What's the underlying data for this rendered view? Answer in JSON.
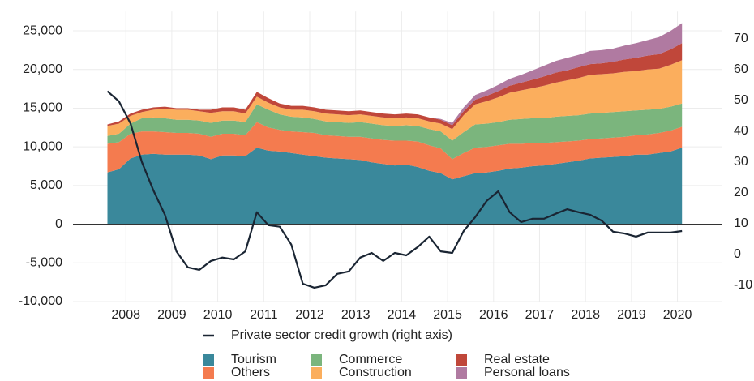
{
  "chart_data": {
    "type": "stacked_area",
    "x": [
      2007.6,
      2007.85,
      2008.1,
      2008.35,
      2008.6,
      2008.85,
      2009.1,
      2009.35,
      2009.6,
      2009.85,
      2010.1,
      2010.35,
      2010.6,
      2010.85,
      2011.1,
      2011.35,
      2011.6,
      2011.85,
      2012.1,
      2012.35,
      2012.6,
      2012.85,
      2013.1,
      2013.35,
      2013.6,
      2013.85,
      2014.1,
      2014.35,
      2014.6,
      2014.85,
      2015.1,
      2015.35,
      2015.6,
      2015.85,
      2016.1,
      2016.35,
      2016.6,
      2016.85,
      2017.1,
      2017.35,
      2017.6,
      2017.85,
      2018.1,
      2018.35,
      2018.6,
      2018.85,
      2019.1,
      2019.35,
      2019.6,
      2019.85,
      2020.1
    ],
    "series": [
      {
        "name": "Tourism",
        "color": "#3a889b",
        "values": [
          6700,
          7100,
          8500,
          9000,
          9100,
          9000,
          9000,
          9000,
          8900,
          8400,
          8900,
          8900,
          8800,
          9900,
          9500,
          9400,
          9200,
          9000,
          8800,
          8600,
          8500,
          8400,
          8300,
          8000,
          7800,
          7600,
          7700,
          7400,
          6900,
          6600,
          5800,
          6200,
          6600,
          6700,
          6900,
          7200,
          7300,
          7500,
          7600,
          7800,
          8000,
          8200,
          8500,
          8600,
          8700,
          8800,
          9000,
          9000,
          9200,
          9400,
          9900
        ]
      },
      {
        "name": "Others",
        "color": "#f47b4f",
        "values": [
          3700,
          3500,
          3200,
          3000,
          2900,
          2900,
          2800,
          2800,
          2800,
          2900,
          2800,
          2800,
          2700,
          3300,
          3000,
          2800,
          2800,
          2900,
          3000,
          2900,
          2900,
          2900,
          3000,
          3100,
          3100,
          3200,
          3100,
          3300,
          3300,
          3200,
          2600,
          3000,
          3300,
          3300,
          3300,
          3200,
          3100,
          3000,
          2900,
          2800,
          2700,
          2600,
          2500,
          2500,
          2500,
          2500,
          2500,
          2600,
          2600,
          2700,
          2700
        ]
      },
      {
        "name": "Commerce",
        "color": "#7bb57d",
        "values": [
          1000,
          1100,
          1300,
          1700,
          1800,
          1800,
          1700,
          1700,
          1700,
          1800,
          1700,
          1700,
          1700,
          2300,
          2300,
          2000,
          1900,
          1900,
          1800,
          1800,
          1800,
          1800,
          1900,
          1900,
          1900,
          1900,
          2000,
          2000,
          2100,
          2200,
          2400,
          2700,
          3000,
          3000,
          3000,
          3100,
          3200,
          3200,
          3200,
          3300,
          3300,
          3300,
          3300,
          3300,
          3300,
          3300,
          3200,
          3200,
          3100,
          3100,
          3000
        ]
      },
      {
        "name": "Construction",
        "color": "#fbae5d",
        "values": [
          1300,
          1300,
          1000,
          800,
          1000,
          1200,
          1300,
          1300,
          1200,
          1300,
          1200,
          1200,
          1100,
          1000,
          900,
          900,
          900,
          1000,
          1000,
          1000,
          1000,
          1000,
          1000,
          1000,
          1000,
          1000,
          1000,
          1000,
          1000,
          1000,
          1500,
          2200,
          2600,
          2900,
          3200,
          3500,
          3700,
          3900,
          4200,
          4400,
          4600,
          4800,
          5000,
          5000,
          5000,
          5100,
          5100,
          5200,
          5200,
          5400,
          5600
        ]
      },
      {
        "name": "Real estate",
        "color": "#c0473a",
        "values": [
          200,
          300,
          300,
          300,
          300,
          300,
          200,
          200,
          200,
          400,
          500,
          500,
          500,
          600,
          600,
          500,
          500,
          500,
          500,
          500,
          500,
          500,
          500,
          500,
          500,
          500,
          500,
          500,
          500,
          500,
          500,
          500,
          600,
          700,
          800,
          900,
          1000,
          1100,
          1200,
          1300,
          1300,
          1400,
          1400,
          1400,
          1500,
          1600,
          1700,
          1800,
          1900,
          2000,
          2200
        ]
      },
      {
        "name": "Personal loans",
        "color": "#b07aa1",
        "values": [
          0,
          0,
          0,
          0,
          0,
          0,
          0,
          0,
          0,
          0,
          0,
          0,
          0,
          0,
          0,
          0,
          0,
          0,
          0,
          0,
          0,
          0,
          0,
          0,
          0,
          0,
          0,
          0,
          0,
          100,
          300,
          500,
          600,
          700,
          800,
          900,
          1000,
          1200,
          1400,
          1500,
          1600,
          1600,
          1700,
          1700,
          1700,
          1800,
          1900,
          2000,
          2200,
          2400,
          2600
        ]
      },
      {
        "name": "Private sector credit growth (right axis)",
        "color": "#1a2533",
        "axis": "y2",
        "values": [
          53,
          49.7,
          42.6,
          30,
          20.8,
          12.9,
          1,
          -4.2,
          -5,
          -2.1,
          -1,
          -1.6,
          1,
          13.7,
          9.5,
          9,
          3.2,
          -9.5,
          -10.8,
          -10,
          -6.3,
          -5.5,
          -1,
          0.5,
          -2.1,
          0.5,
          -0.3,
          2.4,
          5.8,
          1,
          0.5,
          7.6,
          12.1,
          17.4,
          20.5,
          13.7,
          10.5,
          11.6,
          11.6,
          13.2,
          14.7,
          13.7,
          12.9,
          11,
          7.4,
          6.8,
          5.8,
          7.1,
          7.1,
          7.1,
          7.6
        ]
      }
    ],
    "xlim": [
      2006.85,
      2020.96
    ],
    "xticks": [
      2008,
      2009,
      2010,
      2011,
      2012,
      2013,
      2014,
      2015,
      2016,
      2017,
      2018,
      2019,
      2020
    ],
    "ylim": [
      -10000,
      27500
    ],
    "yticks": [
      {
        "value": -10000,
        "label": "-10,000"
      },
      {
        "value": -5000,
        "label": "-5,000"
      },
      0,
      {
        "value": 5000,
        "label": "5,000"
      },
      {
        "value": 10000,
        "label": "10,000"
      },
      {
        "value": 15000,
        "label": "15,000"
      },
      {
        "value": 20000,
        "label": "20,000"
      },
      {
        "value": 25000,
        "label": "25,000"
      }
    ],
    "y2lim": [
      -15.3,
      78.9
    ],
    "y2ticks": [
      -10,
      0,
      10,
      20,
      30,
      40,
      50,
      60,
      70
    ],
    "grid": true
  }
}
